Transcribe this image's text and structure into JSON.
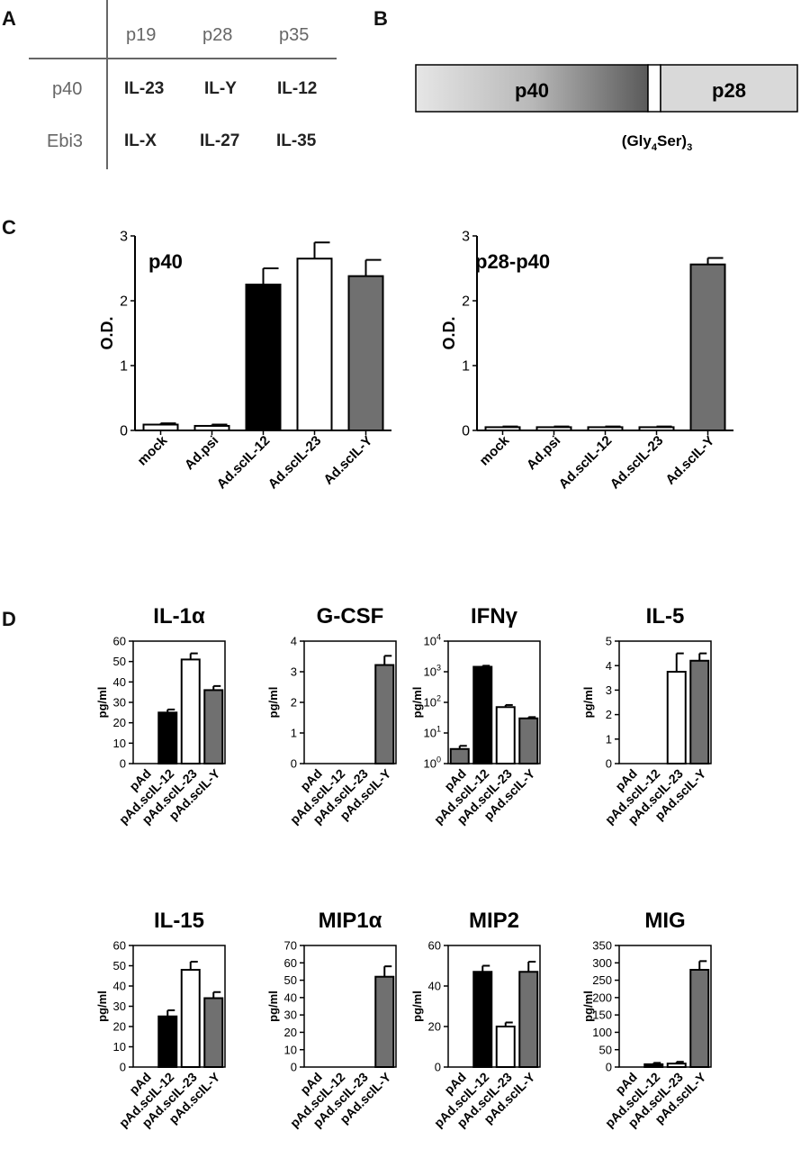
{
  "panel_labels": {
    "a": "A",
    "b": "B",
    "c": "C",
    "d": "D"
  },
  "table": {
    "col_headers": [
      "p19",
      "p28",
      "p35"
    ],
    "rows": [
      {
        "label": "p40",
        "cells": [
          "IL-23",
          "IL-Y",
          "IL-12"
        ]
      },
      {
        "label": "Ebi3",
        "cells": [
          "IL-X",
          "IL-27",
          "IL-35"
        ]
      }
    ]
  },
  "construct": {
    "left_label": "p40",
    "right_label": "p28",
    "linker_main": "(Gly",
    "linker_sub1": "4",
    "linker_mid": "Ser)",
    "linker_sub2": "3"
  },
  "colors": {
    "black": "#000000",
    "white": "#ffffff",
    "gray": "#707070"
  },
  "chart_data": [
    {
      "type": "bar",
      "title": "p40",
      "ylabel": "O.D.",
      "ylim": [
        0,
        3
      ],
      "yticks": [
        "0",
        "1",
        "2",
        "3"
      ],
      "categories": [
        "mock",
        "Ad.psi",
        "Ad.scIL-12",
        "Ad.scIL-23",
        "Ad.scIL-Y"
      ],
      "values": [
        0.09,
        0.07,
        2.25,
        2.65,
        2.38
      ],
      "errors": [
        0.02,
        0.02,
        0.25,
        0.25,
        0.25
      ],
      "fills": [
        "white",
        "white",
        "black",
        "white",
        "gray"
      ],
      "yscale": "linear"
    },
    {
      "type": "bar",
      "title": "p28-p40",
      "ylabel": "O.D.",
      "ylim": [
        0,
        3
      ],
      "yticks": [
        "0",
        "1",
        "2",
        "3"
      ],
      "categories": [
        "mock",
        "Ad.psi",
        "Ad.scIL-12",
        "Ad.scIL-23",
        "Ad.scIL-Y"
      ],
      "values": [
        0.05,
        0.05,
        0.05,
        0.05,
        2.56
      ],
      "errors": [
        0.01,
        0.01,
        0.01,
        0.01,
        0.1
      ],
      "fills": [
        "white",
        "white",
        "white",
        "white",
        "gray"
      ],
      "yscale": "linear"
    },
    {
      "type": "bar",
      "title": "IL-1α",
      "ylabel": "pg/ml",
      "ylim": [
        0,
        60
      ],
      "yticks": [
        "0",
        "10",
        "20",
        "30",
        "40",
        "50",
        "60"
      ],
      "categories": [
        "pAd",
        "pAd.scIL-12",
        "pAd.scIL-23",
        "pAd.scIL-Y"
      ],
      "values": [
        0,
        25,
        51,
        36
      ],
      "errors": [
        0,
        1.5,
        3,
        2
      ],
      "fills": [
        "white",
        "black",
        "white",
        "gray"
      ],
      "yscale": "linear"
    },
    {
      "type": "bar",
      "title": "G-CSF",
      "ylabel": "pg/ml",
      "ylim": [
        0,
        4
      ],
      "yticks": [
        "0",
        "1",
        "2",
        "3",
        "4"
      ],
      "categories": [
        "pAd",
        "pAd.scIL-12",
        "pAd.scIL-23",
        "pAd.scIL-Y"
      ],
      "values": [
        0,
        0,
        0,
        3.22
      ],
      "errors": [
        0,
        0,
        0,
        0.3
      ],
      "fills": [
        "white",
        "black",
        "white",
        "gray"
      ],
      "yscale": "linear"
    },
    {
      "type": "bar",
      "title": "IFNγ",
      "ylabel": "pg/ml",
      "ylim": [
        1,
        10000
      ],
      "yticks": [
        {
          "base": "10",
          "exp": "0"
        },
        {
          "base": "10",
          "exp": "1"
        },
        {
          "base": "10",
          "exp": "2"
        },
        {
          "base": "10",
          "exp": "3"
        },
        {
          "base": "10",
          "exp": "4"
        }
      ],
      "categories": [
        "pAd",
        "pAd.scIL-12",
        "pAd.scIL-23",
        "pAd.scIL-Y"
      ],
      "values": [
        3,
        1450,
        70,
        30
      ],
      "errors": [
        0.8,
        120,
        12,
        3
      ],
      "fills": [
        "gray",
        "black",
        "white",
        "gray"
      ],
      "yscale": "log"
    },
    {
      "type": "bar",
      "title": "IL-5",
      "ylabel": "pg/ml",
      "ylim": [
        0,
        5
      ],
      "yticks": [
        "0",
        "1",
        "2",
        "3",
        "4",
        "5"
      ],
      "categories": [
        "pAd",
        "pAd.scIL-12",
        "pAd.scIL-23",
        "pAd.scIL-Y"
      ],
      "values": [
        0,
        0,
        3.75,
        4.2
      ],
      "errors": [
        0,
        0,
        0.75,
        0.3
      ],
      "fills": [
        "white",
        "black",
        "white",
        "gray"
      ],
      "yscale": "linear"
    },
    {
      "type": "bar",
      "title": "IL-15",
      "ylabel": "pg/ml",
      "ylim": [
        0,
        60
      ],
      "yticks": [
        "0",
        "10",
        "20",
        "30",
        "40",
        "50",
        "60"
      ],
      "categories": [
        "pAd",
        "pAd.scIL-12",
        "pAd.scIL-23",
        "pAd.scIL-Y"
      ],
      "values": [
        0,
        25,
        48,
        34
      ],
      "errors": [
        0,
        3,
        4,
        3
      ],
      "fills": [
        "white",
        "black",
        "white",
        "gray"
      ],
      "yscale": "linear"
    },
    {
      "type": "bar",
      "title": "MIP1α",
      "ylabel": "pg/ml",
      "ylim": [
        0,
        70
      ],
      "yticks": [
        "0",
        "10",
        "20",
        "30",
        "40",
        "50",
        "60",
        "70"
      ],
      "categories": [
        "pAd",
        "pAd.scIL-12",
        "pAd.scIL-23",
        "pAd.scIL-Y"
      ],
      "values": [
        0,
        0,
        0,
        52
      ],
      "errors": [
        0,
        0,
        0,
        6
      ],
      "fills": [
        "white",
        "black",
        "white",
        "gray"
      ],
      "yscale": "linear"
    },
    {
      "type": "bar",
      "title": "MIP2",
      "ylabel": "pg/ml",
      "ylim": [
        0,
        60
      ],
      "yticks": [
        "0",
        "20",
        "40",
        "60"
      ],
      "categories": [
        "pAd",
        "pAd.scIL-12",
        "pAd.scIL-23",
        "pAd.scIL-Y"
      ],
      "values": [
        0,
        47,
        20,
        47
      ],
      "errors": [
        0,
        3,
        2,
        5
      ],
      "fills": [
        "white",
        "black",
        "white",
        "gray"
      ],
      "yscale": "linear"
    },
    {
      "type": "bar",
      "title": "MIG",
      "ylabel": "pg/ml",
      "ylim": [
        0,
        350
      ],
      "yticks": [
        "0",
        "50",
        "100",
        "150",
        "200",
        "250",
        "300",
        "350"
      ],
      "categories": [
        "pAd",
        "pAd.scIL-12",
        "pAd.scIL-23",
        "pAd.scIL-Y"
      ],
      "values": [
        0,
        8,
        10,
        280
      ],
      "errors": [
        0,
        4,
        5,
        25
      ],
      "fills": [
        "white",
        "black",
        "white",
        "gray"
      ],
      "yscale": "linear"
    }
  ]
}
